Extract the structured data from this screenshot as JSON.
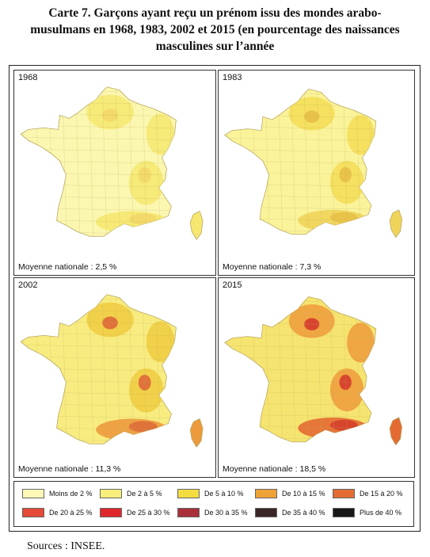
{
  "title": "Carte 7. Garçons ayant reçu un prénom issu des mondes arabo-musulmans en 1968, 1983, 2002 et 2015 (en pourcentage des naissances masculines sur l’année",
  "title_lines": [
    "Carte 7. Garçons ayant reçu un prénom issu des mondes arabo-",
    "musulmans en 1968, 1983, 2002 et 2015 (en pourcentage des naissances",
    "masculines sur l’année"
  ],
  "maps": [
    {
      "year": "1968",
      "average_label": "Moyenne nationale : 2,5 %",
      "base_color": "#fbf7b0",
      "blob_color": "#f5e770",
      "hot_color": "#f2d96a",
      "hot2_color": "#f5e770"
    },
    {
      "year": "1983",
      "average_label": "Moyenne nationale : 7,3 %",
      "base_color": "#faf39a",
      "blob_color": "#f3dc55",
      "hot_color": "#e9c24a",
      "hot2_color": "#f0d35a"
    },
    {
      "year": "2002",
      "average_label": "Moyenne nationale : 11,3 %",
      "base_color": "#f8ec80",
      "blob_color": "#f0cc40",
      "hot_color": "#e0723a",
      "hot2_color": "#ec9a3c"
    },
    {
      "year": "2015",
      "average_label": "Moyenne nationale : 18,5 %",
      "base_color": "#f6e470",
      "blob_color": "#ee9b3a",
      "hot_color": "#d8452e",
      "hot2_color": "#e46a32"
    }
  ],
  "legend": [
    {
      "label": "Moins de 2 %",
      "color": "#fdf8b8"
    },
    {
      "label": "De 2 à 5 %",
      "color": "#f7ee7c"
    },
    {
      "label": "De 5 à 10 %",
      "color": "#f3dc40"
    },
    {
      "label": "De 10 à 15 %",
      "color": "#eea236"
    },
    {
      "label": "De 15 à 20 %",
      "color": "#e46c32"
    },
    {
      "label": "De 20 à 25 %",
      "color": "#e44a36"
    },
    {
      "label": "De 25 à 30 %",
      "color": "#e0282c"
    },
    {
      "label": "De 30 à 35 %",
      "color": "#a8303a"
    },
    {
      "label": "De 35 à 40 %",
      "color": "#3a2626"
    },
    {
      "label": "Plus de 40 %",
      "color": "#181818"
    }
  ],
  "sources": "Sources : INSEE."
}
